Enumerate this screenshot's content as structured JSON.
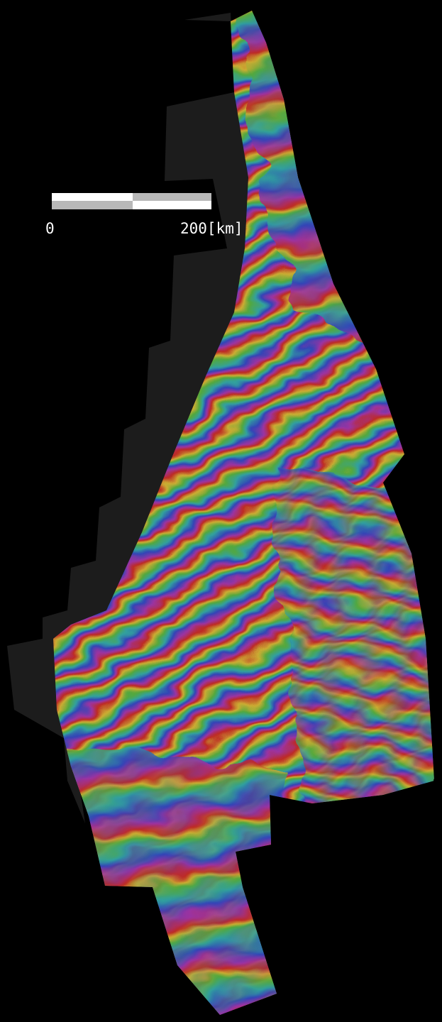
{
  "scale_bar": {
    "start_label": "0",
    "end_label": "200[km]"
  }
}
